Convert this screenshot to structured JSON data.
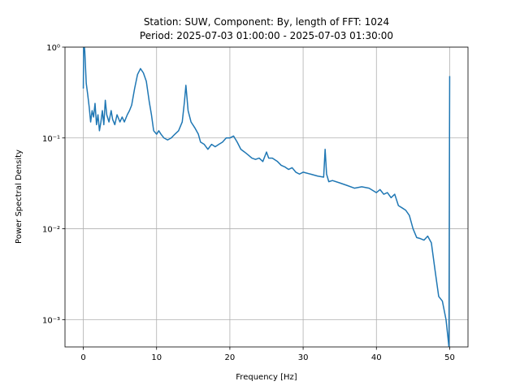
{
  "chart_data": {
    "type": "line",
    "title": "Station: SUW, Component: By, length of FFT: 1024",
    "subtitle": "Period: 2025-07-03 01:00:00 - 2025-07-03 01:30:00",
    "x_label": "Frequency [Hz]",
    "y_label": "Power Spectral Density",
    "color": "#1f77b4",
    "log_y": true,
    "grid": true,
    "xlim": [
      -2.5,
      52.5
    ],
    "xticks": [
      0,
      10,
      20,
      30,
      40,
      50
    ],
    "ylim": [
      0.0005,
      1
    ],
    "yticks": [
      {
        "value": 0.001,
        "label": "10⁻³"
      },
      {
        "value": 0.01,
        "label": "10⁻²"
      },
      {
        "value": 0.1,
        "label": "10⁻¹"
      },
      {
        "value": 1,
        "label": "10⁰"
      }
    ],
    "x": [
      0,
      0.05,
      0.2,
      0.4,
      0.6,
      0.8,
      1,
      1.2,
      1.4,
      1.6,
      1.8,
      2.0,
      2.2,
      2.4,
      2.6,
      2.8,
      3.0,
      3.2,
      3.5,
      3.8,
      4.0,
      4.3,
      4.6,
      5.0,
      5.3,
      5.6,
      6.0,
      6.3,
      6.6,
      7.0,
      7.4,
      7.8,
      8.2,
      8.6,
      9.0,
      9.3,
      9.6,
      10.0,
      10.3,
      10.6,
      11,
      11.5,
      12,
      12.5,
      13,
      13.5,
      13.8,
      14.0,
      14.3,
      14.7,
      15.2,
      15.7,
      16,
      16.5,
      17,
      17.5,
      18,
      18.5,
      19,
      19.5,
      20,
      20.5,
      21,
      21.5,
      22,
      22.5,
      23,
      23.5,
      24,
      24.5,
      25,
      25.3,
      25.8,
      26.5,
      27,
      27.5,
      28,
      28.5,
      29,
      29.5,
      30,
      31,
      32,
      32.8,
      33.0,
      33.2,
      33.5,
      34,
      35,
      36,
      37,
      38,
      39,
      40,
      40.5,
      41,
      41.5,
      42,
      42.5,
      43,
      43.5,
      44,
      44.5,
      45,
      45.5,
      46,
      46.5,
      47,
      47.5,
      48,
      48.5,
      49,
      49.5,
      49.9,
      50
    ],
    "values": [
      0.35,
      1.2,
      0.9,
      0.4,
      0.3,
      0.22,
      0.15,
      0.2,
      0.17,
      0.24,
      0.14,
      0.18,
      0.12,
      0.15,
      0.2,
      0.14,
      0.26,
      0.18,
      0.15,
      0.2,
      0.16,
      0.14,
      0.18,
      0.15,
      0.17,
      0.15,
      0.18,
      0.2,
      0.23,
      0.35,
      0.5,
      0.58,
      0.52,
      0.42,
      0.25,
      0.18,
      0.12,
      0.11,
      0.12,
      0.11,
      0.1,
      0.095,
      0.1,
      0.11,
      0.12,
      0.15,
      0.25,
      0.38,
      0.2,
      0.15,
      0.13,
      0.11,
      0.09,
      0.085,
      0.075,
      0.085,
      0.08,
      0.085,
      0.09,
      0.1,
      0.1,
      0.105,
      0.09,
      0.075,
      0.07,
      0.065,
      0.06,
      0.058,
      0.06,
      0.055,
      0.07,
      0.06,
      0.06,
      0.055,
      0.05,
      0.048,
      0.045,
      0.047,
      0.042,
      0.04,
      0.042,
      0.04,
      0.038,
      0.037,
      0.075,
      0.04,
      0.033,
      0.034,
      0.032,
      0.03,
      0.028,
      0.029,
      0.028,
      0.025,
      0.027,
      0.024,
      0.025,
      0.022,
      0.024,
      0.018,
      0.017,
      0.016,
      0.014,
      0.01,
      0.008,
      0.0078,
      0.0075,
      0.0083,
      0.007,
      0.0035,
      0.0018,
      0.0016,
      0.001,
      0.0005,
      0.48
    ]
  }
}
